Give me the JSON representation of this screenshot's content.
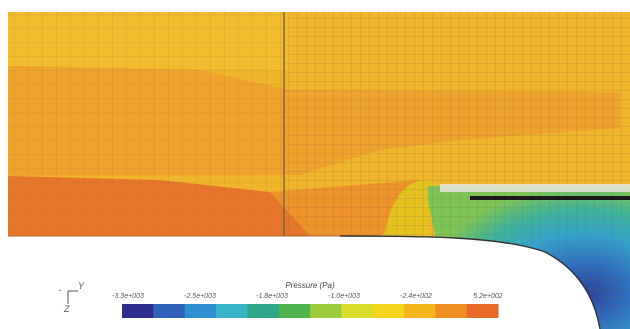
{
  "legend": {
    "title": "Pressure (Pa)",
    "ticks": [
      "-3.3e+003",
      "-2.5e+003",
      "-1.8e+003",
      "-1.0e+003",
      "-2.4e+002",
      "5.2e+002"
    ],
    "colors": [
      "#2e2e8e",
      "#2f62b8",
      "#2f8fd0",
      "#38b5c8",
      "#2fa78a",
      "#4fb34e",
      "#9ccb3d",
      "#d8dc2a",
      "#f3d51e",
      "#f2b51c",
      "#ee9021",
      "#e86a26"
    ]
  },
  "axes": {
    "y": "Y",
    "z": "Z"
  },
  "field_colors": {
    "upper": "#f0b52a",
    "middle": "#efa22c",
    "lower_left": "#e8762a",
    "wake_core": "#2c3f95"
  }
}
